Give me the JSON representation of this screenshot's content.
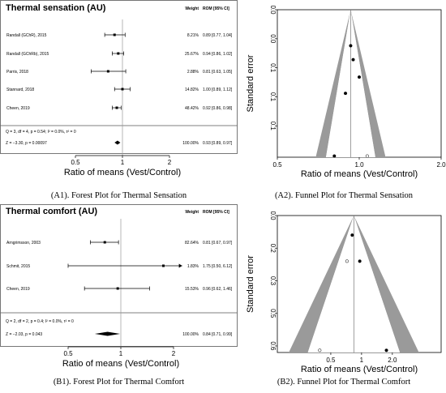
{
  "captions": {
    "a1": "(A1). Forest Plot for Thermal Sensation",
    "a2": "(A2). Funnel Plot for Thermal Sensation",
    "b1": "(B1). Forest Plot for Thermal Comfort",
    "b2": "(B2). Funnel Plot for Thermal Comfort"
  },
  "chart_data": [
    {
      "id": "a1",
      "type": "forest",
      "title": "Thermal sensation (AU)",
      "col_weight": "Weight",
      "col_rom": "ROM [95% CI]",
      "xlabel": "Ratio of means (Vest/Control)",
      "xlim": [
        0.5,
        2
      ],
      "xticks": [
        "0.5",
        "1",
        "2"
      ],
      "log_scale": true,
      "studies": [
        {
          "label": "Randall (GChR), 2015",
          "weight": "8.21%",
          "rom": "0.89 [0.77, 1.04]",
          "est": 0.89,
          "lo": 0.77,
          "hi": 1.04
        },
        {
          "label": "Randall (GChRb), 2015",
          "weight": "25.67%",
          "rom": "0.94 [0.86, 1.02]",
          "est": 0.94,
          "lo": 0.86,
          "hi": 1.02
        },
        {
          "label": "Parris, 2018",
          "weight": "2.88%",
          "rom": "0.81 [0.63, 1.05]",
          "est": 0.81,
          "lo": 0.63,
          "hi": 1.05
        },
        {
          "label": "Stannard, 2018",
          "weight": "14.82%",
          "rom": "1.00 [0.89, 1.12]",
          "est": 1.0,
          "lo": 0.89,
          "hi": 1.12
        },
        {
          "label": "Cheen, 2019",
          "weight": "48.42%",
          "rom": "0.92 [0.86, 0.98]",
          "est": 0.92,
          "lo": 0.86,
          "hi": 0.98
        }
      ],
      "heterogeneity": "Q = 3, df = 4, p = 0.54; I² = 0.0%, τ² = 0",
      "overall": {
        "label": "Z = −3.30, p = 0.00097",
        "weight": "100.00%",
        "rom": "0.93 [0.89, 0.97]",
        "est": 0.93,
        "lo": 0.89,
        "hi": 0.97
      }
    },
    {
      "id": "a2",
      "type": "funnel",
      "xlabel": "Ratio of means (Vest/Control)",
      "ylabel": "Standard error",
      "xlim": [
        0.5,
        2.0
      ],
      "xticks": [
        "0.5",
        "1.0",
        "2.0"
      ],
      "log_scale": true,
      "yticks": [
        "0.0",
        "0.0",
        "0.1",
        "0.1",
        "0.1"
      ],
      "yticks_values": [
        0,
        0.025,
        0.05,
        0.075,
        0.1
      ],
      "center": 0.93,
      "points": [
        {
          "x": 0.93,
          "se": 0.031,
          "filled": true
        },
        {
          "x": 0.95,
          "se": 0.043,
          "filled": true
        },
        {
          "x": 1.0,
          "se": 0.058,
          "filled": true
        },
        {
          "x": 0.89,
          "se": 0.072,
          "filled": true
        },
        {
          "x": 0.81,
          "se": 0.126,
          "filled": true
        },
        {
          "x": 1.07,
          "se": 0.126,
          "filled": false
        }
      ]
    },
    {
      "id": "b1",
      "type": "forest",
      "title": "Thermal comfort (AU)",
      "col_weight": "Weight",
      "col_rom": "ROM [95% CI]",
      "xlabel": "Ratio of means (Vest/Control)",
      "xlim": [
        0.5,
        2
      ],
      "xticks": [
        "0.5",
        "1",
        "2"
      ],
      "log_scale": true,
      "studies": [
        {
          "label": "Arngrimsson, 2003",
          "weight": "82.64%",
          "rom": "0.81 [0.67, 0.97]",
          "est": 0.81,
          "lo": 0.67,
          "hi": 0.97
        },
        {
          "label": "Schmit, 2015",
          "weight": "1.83%",
          "rom": "1.75 [0.50, 6.12]",
          "est": 1.75,
          "lo": 0.5,
          "hi": 6.12
        },
        {
          "label": "Cheen, 2019",
          "weight": "15.53%",
          "rom": "0.96 [0.62, 1.46]",
          "est": 0.96,
          "lo": 0.62,
          "hi": 1.46
        }
      ],
      "heterogeneity": "Q = 2, df = 2, p = 0.4; I² = 0.0%, τ² = 0",
      "overall": {
        "label": "Z = −2.03, p = 0.043",
        "weight": "100.00%",
        "rom": "0.84 [0.71, 0.99]",
        "est": 0.84,
        "lo": 0.71,
        "hi": 0.99
      }
    },
    {
      "id": "b2",
      "type": "funnel",
      "xlabel": "Ratio of means (Vest/Control)",
      "ylabel": "Standard error",
      "xlim": [
        0.15,
        6.0
      ],
      "xticks": [
        "0.5",
        "1",
        "2.0"
      ],
      "xticks_values": [
        0.5,
        1,
        2.0
      ],
      "log_scale": true,
      "yticks": [
        "0.0",
        "0.2",
        "0.3",
        "0.5",
        "0.6"
      ],
      "yticks_values": [
        0,
        0.15,
        0.3,
        0.45,
        0.6
      ],
      "center": 0.84,
      "points": [
        {
          "x": 0.81,
          "se": 0.09,
          "filled": true
        },
        {
          "x": 0.96,
          "se": 0.21,
          "filled": true
        },
        {
          "x": 0.72,
          "se": 0.21,
          "filled": false
        },
        {
          "x": 1.75,
          "se": 0.62,
          "filled": true
        },
        {
          "x": 0.39,
          "se": 0.62,
          "filled": false
        }
      ]
    }
  ]
}
